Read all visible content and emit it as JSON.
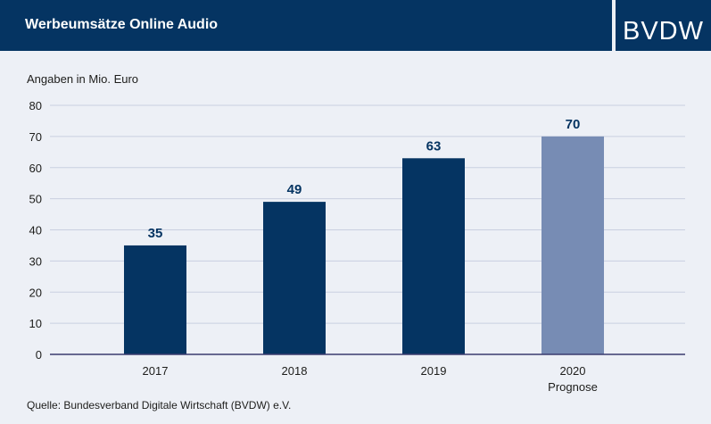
{
  "header": {
    "title": "Werbeumsätze Online Audio",
    "logo_text": "BVDW"
  },
  "unit_label": "Angaben in Mio. Euro",
  "source": "Quelle: Bundesverband Digitale Wirtschaft (BVDW) e.V.",
  "colors": {
    "actual": "#053462",
    "forecast": "#778cb4",
    "background": "#edf0f6",
    "grid": "#c9cfe0",
    "axis": "#3b3b6e"
  },
  "chart_data": {
    "type": "bar",
    "title": "Werbeumsätze Online Audio",
    "xlabel": "",
    "ylabel": "Angaben in Mio. Euro",
    "ylim": [
      0,
      80
    ],
    "yticks": [
      0,
      10,
      20,
      30,
      40,
      50,
      60,
      70,
      80
    ],
    "grid": true,
    "categories": [
      "2017",
      "2018",
      "2019",
      "2020"
    ],
    "category_sublabels": [
      "",
      "",
      "",
      "Prognose"
    ],
    "values": [
      35,
      49,
      63,
      70
    ],
    "forecast": [
      false,
      false,
      false,
      true
    ]
  }
}
